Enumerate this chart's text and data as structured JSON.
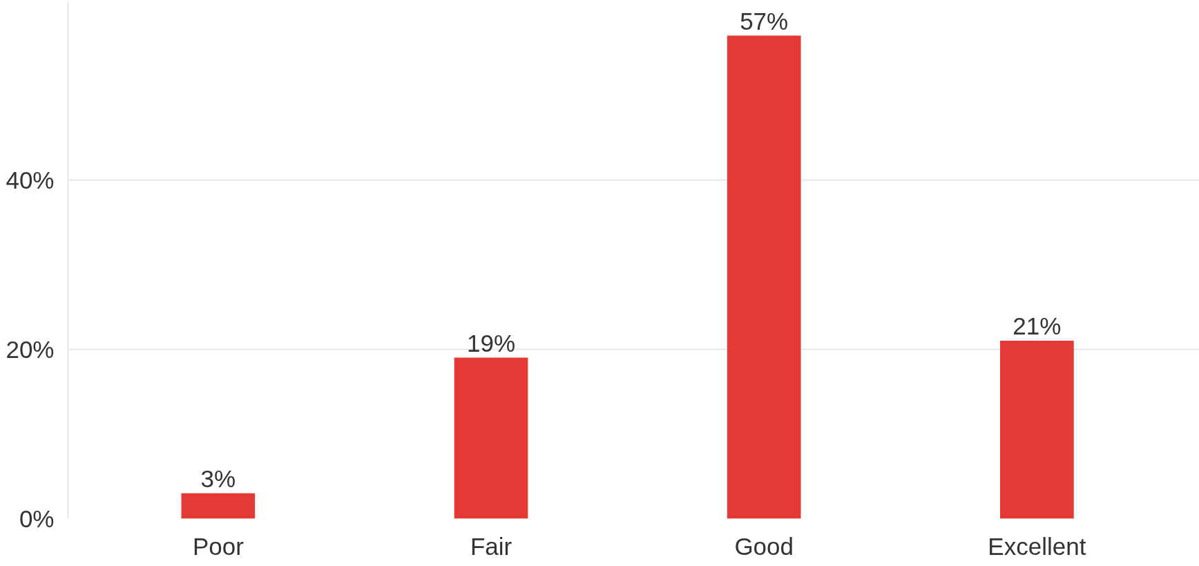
{
  "chart_data": {
    "type": "bar",
    "categories": [
      "Poor",
      "Fair",
      "Good",
      "Excellent"
    ],
    "values": [
      3,
      19,
      57,
      21
    ],
    "value_labels": [
      "3%",
      "19%",
      "57%",
      "21%"
    ],
    "color": "#e53935",
    "ylim": [
      0,
      61
    ],
    "yticks": [
      {
        "value": 0,
        "label": "0%"
      },
      {
        "value": 20,
        "label": "20%"
      },
      {
        "value": 40,
        "label": "40%"
      }
    ],
    "grid": "y"
  }
}
